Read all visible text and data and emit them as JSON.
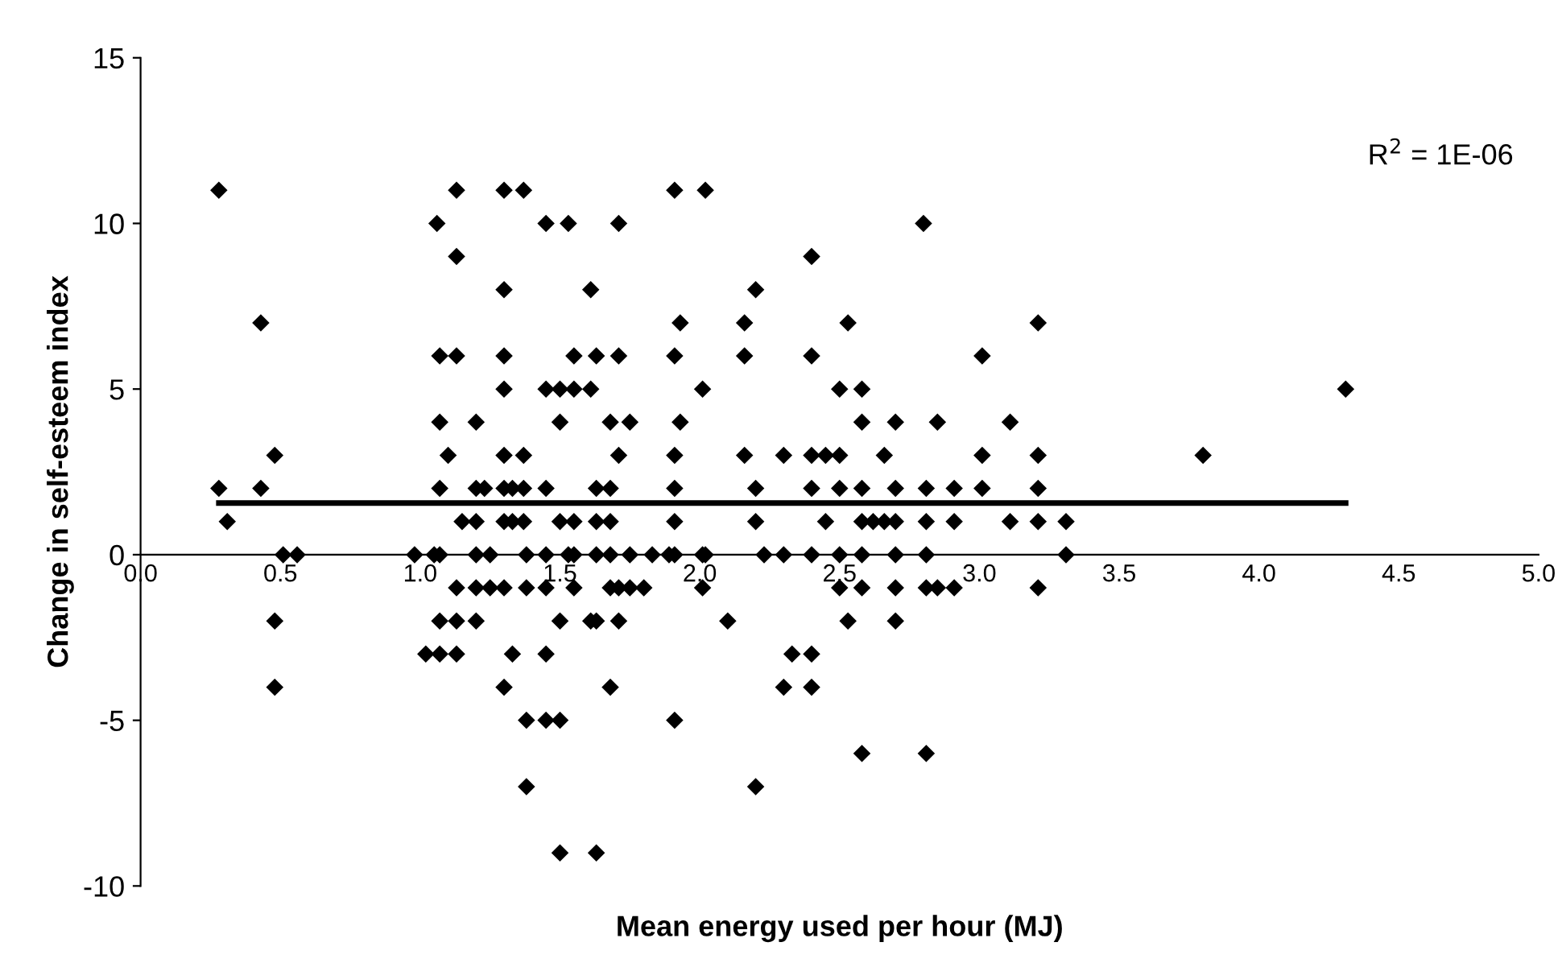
{
  "chart_data": {
    "type": "scatter",
    "xlabel": "Mean energy used per hour (MJ)",
    "ylabel": "Change in self-esteem index",
    "xlim": [
      0,
      5
    ],
    "ylim": [
      -10,
      15
    ],
    "xticks": [
      {
        "value": 0,
        "label": "0.0"
      },
      {
        "value": 0.5,
        "label": "0.5"
      },
      {
        "value": 1,
        "label": "1.0"
      },
      {
        "value": 1.5,
        "label": "1.5"
      },
      {
        "value": 2,
        "label": "2.0"
      },
      {
        "value": 2.5,
        "label": "2.5"
      },
      {
        "value": 3,
        "label": "3.0"
      },
      {
        "value": 3.5,
        "label": "3.5"
      },
      {
        "value": 4,
        "label": "4.0"
      },
      {
        "value": 4.5,
        "label": "4.5"
      },
      {
        "value": 5,
        "label": "5.0"
      }
    ],
    "yticks": [
      -10,
      -5,
      0,
      5,
      10,
      15
    ],
    "marker": "diamond",
    "grid": false,
    "legend": false,
    "annotations": [
      "R$^{2}$ = 1E-06"
    ],
    "series": [
      {
        "color": "#000000",
        "x": [
          0.28,
          1.13,
          1.3,
          1.37,
          1.91,
          2.02,
          1.06,
          1.45,
          1.53,
          1.71,
          2.8,
          1.13,
          2.4,
          1.3,
          1.61,
          2.2,
          0.43,
          1.93,
          2.16,
          2.53,
          3.21,
          1.07,
          1.13,
          1.3,
          1.55,
          1.63,
          1.71,
          1.91,
          2.16,
          2.4,
          3.01,
          1.3,
          1.45,
          1.5,
          1.55,
          1.61,
          2.01,
          2.5,
          2.58,
          4.31,
          1.07,
          1.2,
          1.5,
          1.68,
          1.75,
          1.93,
          2.58,
          2.7,
          2.85,
          3.11,
          0.48,
          1.1,
          1.3,
          1.37,
          1.71,
          1.91,
          2.16,
          2.3,
          2.4,
          2.45,
          2.5,
          2.66,
          3.01,
          3.21,
          3.8,
          0.28,
          0.43,
          1.07,
          1.2,
          1.23,
          1.3,
          1.33,
          1.37,
          1.45,
          1.63,
          1.68,
          1.91,
          2.2,
          2.4,
          2.5,
          2.58,
          2.7,
          2.81,
          2.91,
          3.01,
          3.21,
          0.31,
          1.15,
          1.2,
          1.3,
          1.33,
          1.37,
          1.5,
          1.55,
          1.63,
          1.68,
          1.91,
          2.2,
          2.45,
          2.58,
          2.62,
          2.66,
          2.7,
          2.81,
          2.91,
          3.11,
          3.21,
          3.31,
          0.51,
          0.56,
          0.98,
          1.05,
          1.07,
          1.2,
          1.25,
          1.38,
          1.45,
          1.53,
          1.55,
          1.63,
          1.68,
          1.75,
          1.83,
          1.89,
          1.91,
          2.01,
          2.02,
          2.23,
          2.3,
          2.4,
          2.5,
          2.58,
          2.7,
          2.81,
          3.31,
          1.13,
          1.2,
          1.25,
          1.3,
          1.38,
          1.45,
          1.55,
          1.68,
          1.71,
          1.75,
          1.8,
          2.01,
          2.5,
          2.58,
          2.7,
          2.81,
          2.85,
          2.91,
          3.21,
          0.48,
          1.07,
          1.13,
          1.2,
          1.5,
          1.61,
          1.63,
          1.71,
          2.1,
          2.53,
          2.7,
          1.02,
          1.07,
          1.13,
          1.33,
          1.45,
          2.33,
          2.4,
          0.48,
          1.3,
          1.68,
          2.3,
          2.4,
          1.38,
          1.45,
          1.5,
          1.91,
          2.58,
          2.81,
          1.38,
          2.2,
          1.5,
          1.63
        ],
        "values": [
          11,
          11,
          11,
          11,
          11,
          11,
          10,
          10,
          10,
          10,
          10,
          9,
          9,
          8,
          8,
          8,
          7,
          7,
          7,
          7,
          7,
          6,
          6,
          6,
          6,
          6,
          6,
          6,
          6,
          6,
          6,
          5,
          5,
          5,
          5,
          5,
          5,
          5,
          5,
          5,
          4,
          4,
          4,
          4,
          4,
          4,
          4,
          4,
          4,
          4,
          3,
          3,
          3,
          3,
          3,
          3,
          3,
          3,
          3,
          3,
          3,
          3,
          3,
          3,
          3,
          2,
          2,
          2,
          2,
          2,
          2,
          2,
          2,
          2,
          2,
          2,
          2,
          2,
          2,
          2,
          2,
          2,
          2,
          2,
          2,
          2,
          1,
          1,
          1,
          1,
          1,
          1,
          1,
          1,
          1,
          1,
          1,
          1,
          1,
          1,
          1,
          1,
          1,
          1,
          1,
          1,
          1,
          1,
          0,
          0,
          0,
          0,
          0,
          0,
          0,
          0,
          0,
          0,
          0,
          0,
          0,
          0,
          0,
          0,
          0,
          0,
          0,
          0,
          0,
          0,
          0,
          0,
          0,
          0,
          0,
          -1,
          -1,
          -1,
          -1,
          -1,
          -1,
          -1,
          -1,
          -1,
          -1,
          -1,
          -1,
          -1,
          -1,
          -1,
          -1,
          -1,
          -1,
          -1,
          -2,
          -2,
          -2,
          -2,
          -2,
          -2,
          -2,
          -2,
          -2,
          -2,
          -2,
          -3,
          -3,
          -3,
          -3,
          -3,
          -3,
          -3,
          -4,
          -4,
          -4,
          -4,
          -4,
          -5,
          -5,
          -5,
          -5,
          -6,
          -6,
          -7,
          -7,
          -9,
          -9
        ]
      },
      {
        "type": "line",
        "color": "#000000",
        "marker": "none",
        "x": [
          0.28,
          4.31
        ],
        "values": [
          1.56,
          1.56
        ]
      }
    ]
  }
}
